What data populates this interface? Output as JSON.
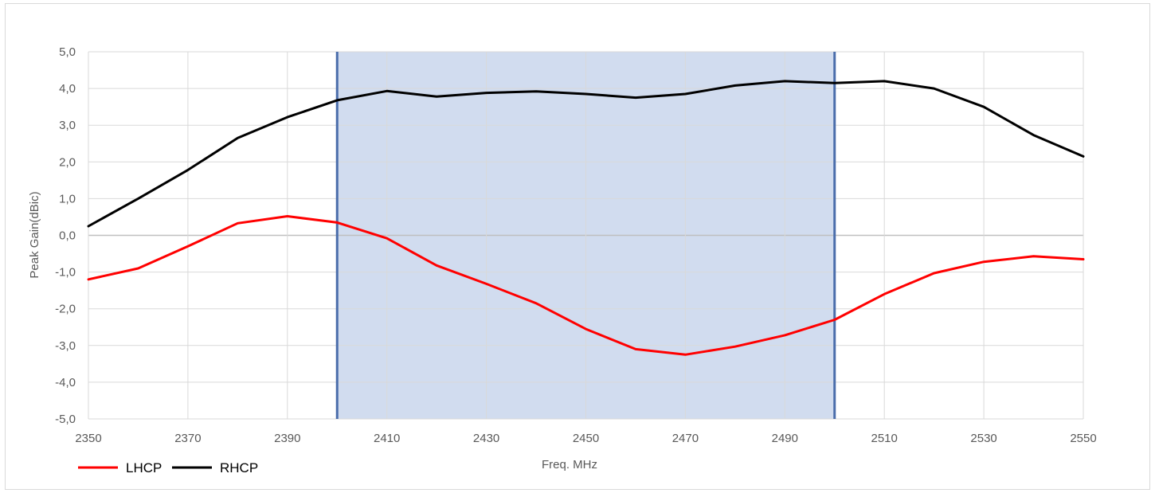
{
  "chart_data": {
    "type": "line",
    "title": "",
    "xlabel": "Freq. MHz",
    "ylabel": "Peak Gain(dBic)",
    "xlim": [
      2350,
      2550
    ],
    "ylim": [
      -5,
      5
    ],
    "x_ticks": [
      2350,
      2370,
      2390,
      2410,
      2430,
      2450,
      2470,
      2490,
      2510,
      2530,
      2550
    ],
    "x_tick_labels": [
      "2350",
      "2370",
      "2390",
      "2410",
      "2430",
      "2450",
      "2470",
      "2490",
      "2510",
      "2530",
      "2550"
    ],
    "y_ticks": [
      5,
      4,
      3,
      2,
      1,
      0,
      -1,
      -2,
      -3,
      -4,
      -5
    ],
    "y_tick_labels": [
      "5,0",
      "4,0",
      "3,0",
      "2,0",
      "1,0",
      "0,0",
      "-1,0",
      "-2,0",
      "-3,0",
      "-4,0",
      "-5,0"
    ],
    "grid": true,
    "legend_position": "bottom-left",
    "x": [
      2350,
      2360,
      2370,
      2380,
      2390,
      2400,
      2410,
      2420,
      2430,
      2440,
      2450,
      2460,
      2470,
      2480,
      2490,
      2500,
      2510,
      2520,
      2530,
      2540,
      2550
    ],
    "series": [
      {
        "name": "LHCP",
        "color": "#ff0000",
        "values": [
          -1.2,
          -0.9,
          -0.3,
          0.33,
          0.52,
          0.35,
          -0.08,
          -0.82,
          -1.32,
          -1.85,
          -2.55,
          -3.1,
          -3.25,
          -3.03,
          -2.72,
          -2.3,
          -1.6,
          -1.03,
          -0.72,
          -0.57,
          -0.65
        ]
      },
      {
        "name": "RHCP",
        "color": "#000000",
        "values": [
          0.25,
          1.0,
          1.78,
          2.65,
          3.22,
          3.68,
          3.93,
          3.78,
          3.88,
          3.92,
          3.85,
          3.75,
          3.85,
          4.08,
          4.2,
          4.15,
          4.2,
          4.0,
          3.5,
          2.73,
          2.15
        ]
      }
    ],
    "highlight_band": {
      "x_start": 2400,
      "x_end": 2500,
      "fill": "#d1dcef",
      "edge": "#4a6dab"
    }
  }
}
